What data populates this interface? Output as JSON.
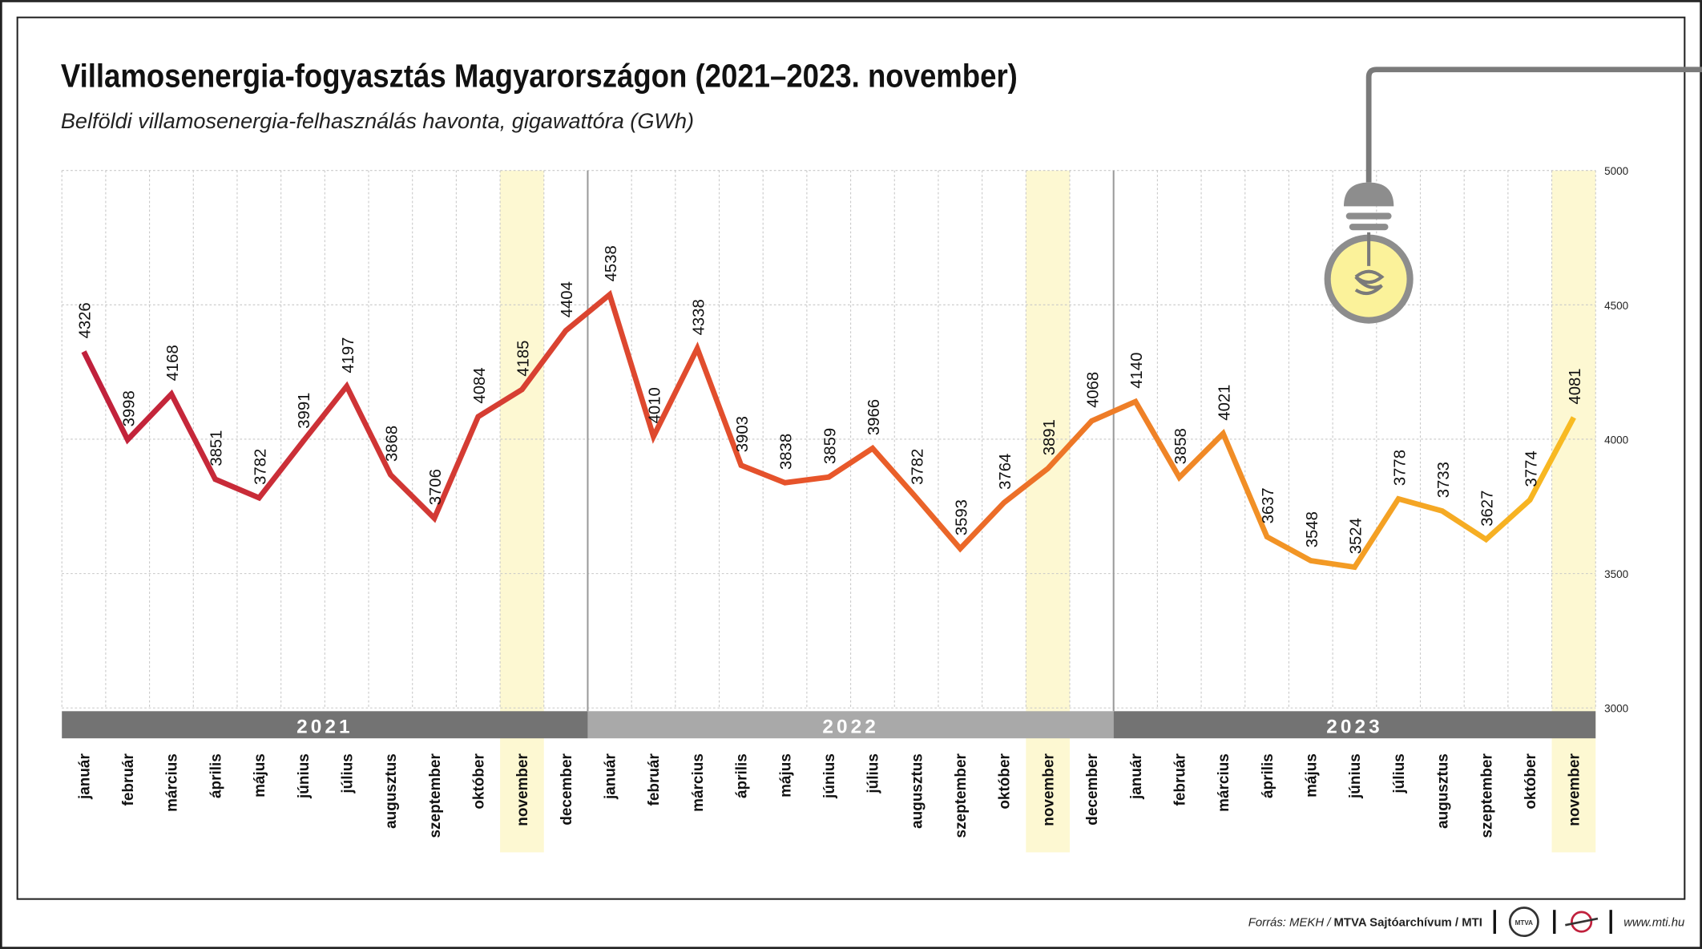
{
  "chart_data": {
    "type": "line",
    "title": "Villamosenergia-fogyasztás Magyarországon (2021–2023. november)",
    "subtitle": "Belföldi villamosenergia-felhasználás havonta, gigawattóra (GWh)",
    "categories": [
      "január",
      "február",
      "március",
      "április",
      "május",
      "június",
      "július",
      "augusztus",
      "szeptember",
      "október",
      "november",
      "december",
      "január",
      "február",
      "március",
      "április",
      "május",
      "június",
      "július",
      "augusztus",
      "szeptember",
      "október",
      "november",
      "december",
      "január",
      "február",
      "március",
      "április",
      "május",
      "június",
      "július",
      "augusztus",
      "szeptember",
      "október",
      "november"
    ],
    "series": [
      {
        "name": "Villamosenergia-felhasználás",
        "colors": [
          "#c0203c",
          "#e8562a",
          "#f8bb22"
        ],
        "values": [
          4326,
          3998,
          4168,
          3851,
          3782,
          3991,
          4197,
          3868,
          3706,
          4084,
          4185,
          4404,
          4538,
          4010,
          4338,
          3903,
          3838,
          3859,
          3966,
          3782,
          3593,
          3764,
          3891,
          4068,
          4140,
          3858,
          4021,
          3637,
          3548,
          3524,
          3778,
          3733,
          3627,
          3774,
          4081
        ]
      }
    ],
    "year_labels": [
      "2021",
      "2022",
      "2023"
    ],
    "band_colors": [
      "#737373",
      "#a9a9a9",
      "#737373"
    ],
    "highlight_indices": [
      10,
      22,
      34
    ],
    "ylim": [
      3000,
      5000
    ],
    "yticks": [
      3000,
      3500,
      4000,
      4500,
      5000
    ],
    "grid": true
  },
  "footer": {
    "source_prefix": "Forrás: MEKH / ",
    "source_bold": "MTVA Sajtóarchívum / MTI",
    "logo": "MTVA",
    "website": "www.mti.hu"
  }
}
